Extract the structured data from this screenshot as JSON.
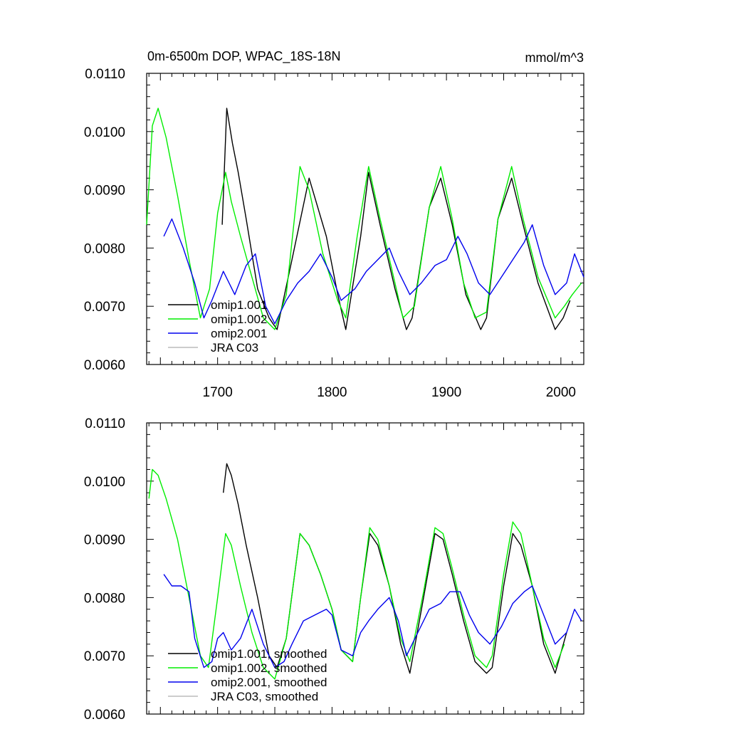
{
  "figure": {
    "title_left": "0m-6500m DOP, WPAC_18S-18N",
    "title_right": "mmol/m^3"
  },
  "colors": {
    "omip1_001": "#000000",
    "omip1_002": "#00ee00",
    "omip2_001": "#0000ee",
    "jra_c03": "#bbbbbb"
  },
  "chart_data": [
    {
      "type": "line",
      "panel": "top",
      "title": "0m-6500m DOP, WPAC_18S-18N",
      "units": "mmol/m^3",
      "xlim": [
        1638,
        2020
      ],
      "ylim": [
        0.006,
        0.011
      ],
      "yticks": [
        "0.0060",
        "0.0070",
        "0.0080",
        "0.0090",
        "0.0100",
        "0.0110"
      ],
      "xticks": [
        "1700",
        "1800",
        "1900",
        "2000"
      ],
      "legend_position": "lower-left",
      "series": [
        {
          "name": "omip1.001",
          "color": "#000000",
          "x": [
            1704,
            1708,
            1713,
            1718,
            1725,
            1735,
            1745,
            1752,
            1765,
            1780,
            1795,
            1805,
            1812,
            1825,
            1832,
            1842,
            1855,
            1865,
            1870,
            1885,
            1895,
            1905,
            1917,
            1930,
            1935,
            1945,
            1957,
            1967,
            1980,
            1995,
            2002,
            2008
          ],
          "y": [
            0.0084,
            0.0104,
            0.0098,
            0.0093,
            0.0085,
            0.0073,
            0.0068,
            0.0066,
            0.0078,
            0.0092,
            0.0082,
            0.0072,
            0.0066,
            0.0082,
            0.0093,
            0.0084,
            0.0073,
            0.0066,
            0.0068,
            0.0087,
            0.0092,
            0.0084,
            0.0072,
            0.0066,
            0.0068,
            0.0085,
            0.0092,
            0.0084,
            0.0074,
            0.0066,
            0.0068,
            0.0071
          ]
        },
        {
          "name": "omip1.002",
          "color": "#00ee00",
          "x": [
            1638,
            1643,
            1648,
            1655,
            1665,
            1675,
            1685,
            1693,
            1700,
            1707,
            1712,
            1720,
            1730,
            1740,
            1750,
            1760,
            1772,
            1780,
            1792,
            1805,
            1812,
            1822,
            1832,
            1842,
            1855,
            1862,
            1872,
            1885,
            1895,
            1905,
            1915,
            1925,
            1935,
            1945,
            1957,
            1967,
            1980,
            1995,
            2003,
            2010,
            2018
          ],
          "y": [
            0.0084,
            0.0101,
            0.0104,
            0.0099,
            0.0089,
            0.0078,
            0.0068,
            0.0073,
            0.0086,
            0.0093,
            0.0088,
            0.0082,
            0.0075,
            0.0068,
            0.0066,
            0.0072,
            0.0094,
            0.009,
            0.0079,
            0.0071,
            0.0068,
            0.0082,
            0.0094,
            0.0085,
            0.0074,
            0.0068,
            0.007,
            0.0087,
            0.0094,
            0.0085,
            0.0074,
            0.0068,
            0.0069,
            0.0085,
            0.0094,
            0.0085,
            0.0075,
            0.0068,
            0.007,
            0.0072,
            0.0074
          ]
        },
        {
          "name": "omip2.001",
          "color": "#0000ee",
          "x": [
            1653,
            1660,
            1670,
            1680,
            1688,
            1695,
            1705,
            1715,
            1725,
            1733,
            1742,
            1750,
            1760,
            1770,
            1780,
            1790,
            1800,
            1808,
            1820,
            1830,
            1840,
            1850,
            1858,
            1868,
            1878,
            1890,
            1900,
            1910,
            1918,
            1928,
            1938,
            1948,
            1958,
            1968,
            1975,
            1985,
            1995,
            2005,
            2012,
            2020
          ],
          "y": [
            0.0082,
            0.0085,
            0.008,
            0.0074,
            0.0068,
            0.0071,
            0.0076,
            0.0072,
            0.0077,
            0.0079,
            0.007,
            0.0067,
            0.0071,
            0.0074,
            0.0076,
            0.0079,
            0.0075,
            0.0071,
            0.0073,
            0.0076,
            0.0078,
            0.008,
            0.0076,
            0.0072,
            0.0074,
            0.0077,
            0.0078,
            0.0082,
            0.0079,
            0.0074,
            0.0072,
            0.0075,
            0.0078,
            0.0081,
            0.0084,
            0.0077,
            0.0072,
            0.0074,
            0.0079,
            0.0075
          ]
        },
        {
          "name": "JRA C03",
          "color": "#bbbbbb",
          "x": [],
          "y": []
        }
      ]
    },
    {
      "type": "line",
      "panel": "bottom",
      "xlim": [
        1638,
        2020
      ],
      "ylim": [
        0.006,
        0.011
      ],
      "yticks": [
        "0.0060",
        "0.0070",
        "0.0080",
        "0.0090",
        "0.0100",
        "0.0110"
      ],
      "legend_position": "lower-left",
      "series": [
        {
          "name": "omip1.001, smoothed",
          "color": "#000000",
          "x": [
            1705,
            1708,
            1712,
            1718,
            1725,
            1735,
            1745,
            1752,
            1760,
            1772,
            1780,
            1790,
            1800,
            1808,
            1818,
            1825,
            1833,
            1840,
            1850,
            1860,
            1868,
            1880,
            1890,
            1897,
            1905,
            1915,
            1925,
            1935,
            1940,
            1950,
            1958,
            1965,
            1975,
            1985,
            1995,
            2005
          ],
          "y": [
            0.0098,
            0.0103,
            0.0101,
            0.0096,
            0.0089,
            0.008,
            0.007,
            0.0068,
            0.0073,
            0.0091,
            0.0089,
            0.0084,
            0.0078,
            0.0071,
            0.0069,
            0.008,
            0.0091,
            0.0089,
            0.0082,
            0.0072,
            0.0067,
            0.008,
            0.0091,
            0.009,
            0.0084,
            0.0076,
            0.0069,
            0.0067,
            0.0068,
            0.0082,
            0.0091,
            0.0089,
            0.0082,
            0.0072,
            0.0067,
            0.0074
          ]
        },
        {
          "name": "omip1.002, smoothed",
          "color": "#00ee00",
          "x": [
            1640,
            1643,
            1648,
            1655,
            1665,
            1675,
            1685,
            1692,
            1700,
            1707,
            1712,
            1720,
            1730,
            1740,
            1750,
            1760,
            1772,
            1780,
            1790,
            1800,
            1808,
            1818,
            1825,
            1833,
            1840,
            1850,
            1860,
            1868,
            1880,
            1890,
            1897,
            1905,
            1915,
            1925,
            1935,
            1940,
            1950,
            1958,
            1965,
            1975,
            1985,
            1995,
            2003
          ],
          "y": [
            0.0097,
            0.0102,
            0.0101,
            0.0097,
            0.009,
            0.008,
            0.007,
            0.0068,
            0.008,
            0.0091,
            0.0089,
            0.0082,
            0.0074,
            0.0068,
            0.0066,
            0.0073,
            0.0091,
            0.0089,
            0.0084,
            0.0078,
            0.0071,
            0.0069,
            0.008,
            0.0092,
            0.009,
            0.0082,
            0.0073,
            0.0069,
            0.0081,
            0.0092,
            0.0091,
            0.0085,
            0.0077,
            0.007,
            0.0068,
            0.007,
            0.0084,
            0.0093,
            0.0091,
            0.0082,
            0.0073,
            0.0068,
            0.0072
          ]
        },
        {
          "name": "omip2.001, smoothed",
          "color": "#0000ee",
          "x": [
            1653,
            1660,
            1668,
            1675,
            1680,
            1688,
            1695,
            1700,
            1705,
            1712,
            1720,
            1730,
            1740,
            1750,
            1758,
            1765,
            1775,
            1785,
            1795,
            1800,
            1808,
            1818,
            1825,
            1832,
            1840,
            1850,
            1858,
            1865,
            1875,
            1885,
            1895,
            1903,
            1912,
            1920,
            1928,
            1938,
            1948,
            1958,
            1968,
            1975,
            1985,
            1995,
            2005,
            2012,
            2018
          ],
          "y": [
            0.0084,
            0.0082,
            0.0082,
            0.0081,
            0.0073,
            0.0068,
            0.0069,
            0.0073,
            0.0074,
            0.0071,
            0.0073,
            0.0078,
            0.0072,
            0.0068,
            0.0069,
            0.0072,
            0.0076,
            0.0077,
            0.0078,
            0.0077,
            0.0071,
            0.007,
            0.0074,
            0.0076,
            0.0078,
            0.008,
            0.0076,
            0.007,
            0.0074,
            0.0078,
            0.0079,
            0.0081,
            0.0081,
            0.0077,
            0.0074,
            0.0072,
            0.0075,
            0.0079,
            0.0081,
            0.0082,
            0.0077,
            0.0072,
            0.0074,
            0.0078,
            0.0076
          ]
        },
        {
          "name": "JRA C03, smoothed",
          "color": "#bbbbbb",
          "x": [],
          "y": []
        }
      ]
    }
  ]
}
